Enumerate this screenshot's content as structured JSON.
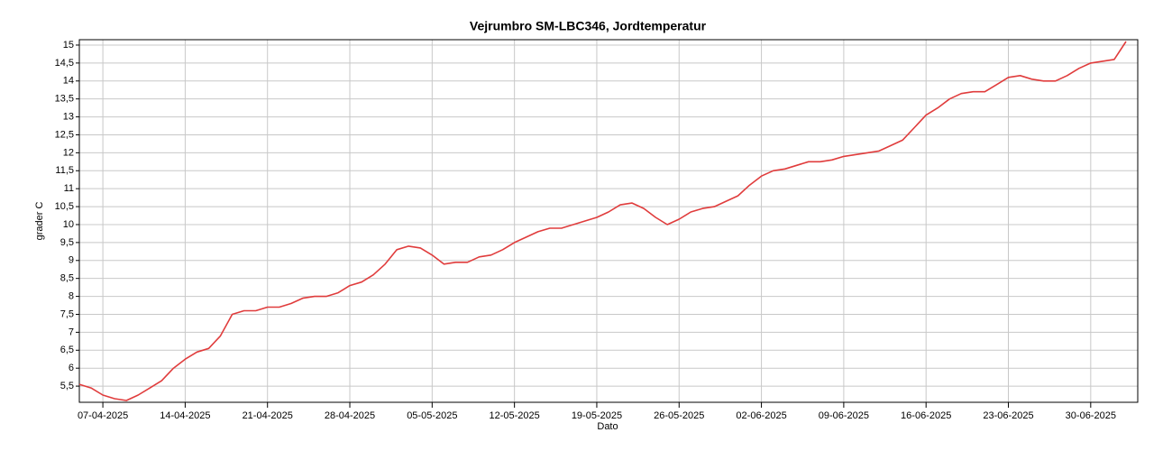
{
  "chart_data": {
    "type": "line",
    "title": "Vejrumbro SM-LBC346, Jordtemperatur",
    "x_label": "Dato",
    "y_label": "grader C",
    "x": [
      "2025-04-05",
      "2025-04-06",
      "2025-04-07",
      "2025-04-08",
      "2025-04-09",
      "2025-04-10",
      "2025-04-11",
      "2025-04-12",
      "2025-04-13",
      "2025-04-14",
      "2025-04-15",
      "2025-04-16",
      "2025-04-17",
      "2025-04-18",
      "2025-04-19",
      "2025-04-20",
      "2025-04-21",
      "2025-04-22",
      "2025-04-23",
      "2025-04-24",
      "2025-04-25",
      "2025-04-26",
      "2025-04-27",
      "2025-04-28",
      "2025-04-29",
      "2025-04-30",
      "2025-05-01",
      "2025-05-02",
      "2025-05-03",
      "2025-05-04",
      "2025-05-05",
      "2025-05-06",
      "2025-05-07",
      "2025-05-08",
      "2025-05-09",
      "2025-05-10",
      "2025-05-11",
      "2025-05-12",
      "2025-05-13",
      "2025-05-14",
      "2025-05-15",
      "2025-05-16",
      "2025-05-17",
      "2025-05-18",
      "2025-05-19",
      "2025-05-20",
      "2025-05-21",
      "2025-05-22",
      "2025-05-23",
      "2025-05-24",
      "2025-05-25",
      "2025-05-26",
      "2025-05-27",
      "2025-05-28",
      "2025-05-29",
      "2025-05-30",
      "2025-05-31",
      "2025-06-01",
      "2025-06-02",
      "2025-06-03",
      "2025-06-04",
      "2025-06-05",
      "2025-06-06",
      "2025-06-07",
      "2025-06-08",
      "2025-06-09",
      "2025-06-10",
      "2025-06-11",
      "2025-06-12",
      "2025-06-13",
      "2025-06-14",
      "2025-06-15",
      "2025-06-16",
      "2025-06-17",
      "2025-06-18",
      "2025-06-19",
      "2025-06-20",
      "2025-06-21",
      "2025-06-22",
      "2025-06-23",
      "2025-06-24",
      "2025-06-25",
      "2025-06-26",
      "2025-06-27",
      "2025-06-28",
      "2025-06-29",
      "2025-06-30",
      "2025-07-01",
      "2025-07-02",
      "2025-07-03"
    ],
    "series": [
      {
        "name": "Jordtemperatur",
        "color": "#e03c3c",
        "values": [
          5.55,
          5.45,
          5.25,
          5.15,
          5.1,
          5.25,
          5.45,
          5.65,
          6.0,
          6.25,
          6.45,
          6.55,
          6.9,
          7.5,
          7.6,
          7.6,
          7.7,
          7.7,
          7.8,
          7.95,
          8.0,
          8.0,
          8.1,
          8.3,
          8.4,
          8.6,
          8.9,
          9.3,
          9.4,
          9.35,
          9.15,
          8.9,
          8.95,
          8.95,
          9.1,
          9.15,
          9.3,
          9.5,
          9.65,
          9.8,
          9.9,
          9.9,
          10.0,
          10.1,
          10.2,
          10.35,
          10.55,
          10.6,
          10.45,
          10.2,
          10.0,
          10.15,
          10.35,
          10.45,
          10.5,
          10.65,
          10.8,
          11.1,
          11.35,
          11.5,
          11.55,
          11.65,
          11.75,
          11.75,
          11.8,
          11.9,
          11.95,
          12.0,
          12.05,
          12.2,
          12.35,
          12.7,
          13.05,
          13.25,
          13.5,
          13.65,
          13.7,
          13.7,
          13.9,
          14.1,
          14.15,
          14.05,
          14.0,
          14.0,
          14.15,
          14.35,
          14.5,
          14.55,
          14.6,
          15.1
        ]
      }
    ],
    "xlim": [
      "2025-04-05",
      "2025-07-04"
    ],
    "xticks": [
      {
        "value": "2025-04-07",
        "label": "07-04-2025"
      },
      {
        "value": "2025-04-14",
        "label": "14-04-2025"
      },
      {
        "value": "2025-04-21",
        "label": "21-04-2025"
      },
      {
        "value": "2025-04-28",
        "label": "28-04-2025"
      },
      {
        "value": "2025-05-05",
        "label": "05-05-2025"
      },
      {
        "value": "2025-05-12",
        "label": "12-05-2025"
      },
      {
        "value": "2025-05-19",
        "label": "19-05-2025"
      },
      {
        "value": "2025-05-26",
        "label": "26-05-2025"
      },
      {
        "value": "2025-06-02",
        "label": "02-06-2025"
      },
      {
        "value": "2025-06-09",
        "label": "09-06-2025"
      },
      {
        "value": "2025-06-16",
        "label": "16-06-2025"
      },
      {
        "value": "2025-06-23",
        "label": "23-06-2025"
      },
      {
        "value": "2025-06-30",
        "label": "30-06-2025"
      }
    ],
    "ylim": [
      5.05,
      15.15
    ],
    "yticks": [
      {
        "value": 5.5,
        "label": "5,5"
      },
      6,
      {
        "value": 6.5,
        "label": "6,5"
      },
      7,
      {
        "value": 7.5,
        "label": "7,5"
      },
      8,
      {
        "value": 8.5,
        "label": "8,5"
      },
      9,
      {
        "value": 9.5,
        "label": "9,5"
      },
      10,
      {
        "value": 10.5,
        "label": "10,5"
      },
      11,
      {
        "value": 11.5,
        "label": "11,5"
      },
      12,
      {
        "value": 12.5,
        "label": "12,5"
      },
      13,
      {
        "value": 13.5,
        "label": "13,5"
      },
      14,
      {
        "value": 14.5,
        "label": "14,5"
      },
      15
    ],
    "grid": true
  }
}
